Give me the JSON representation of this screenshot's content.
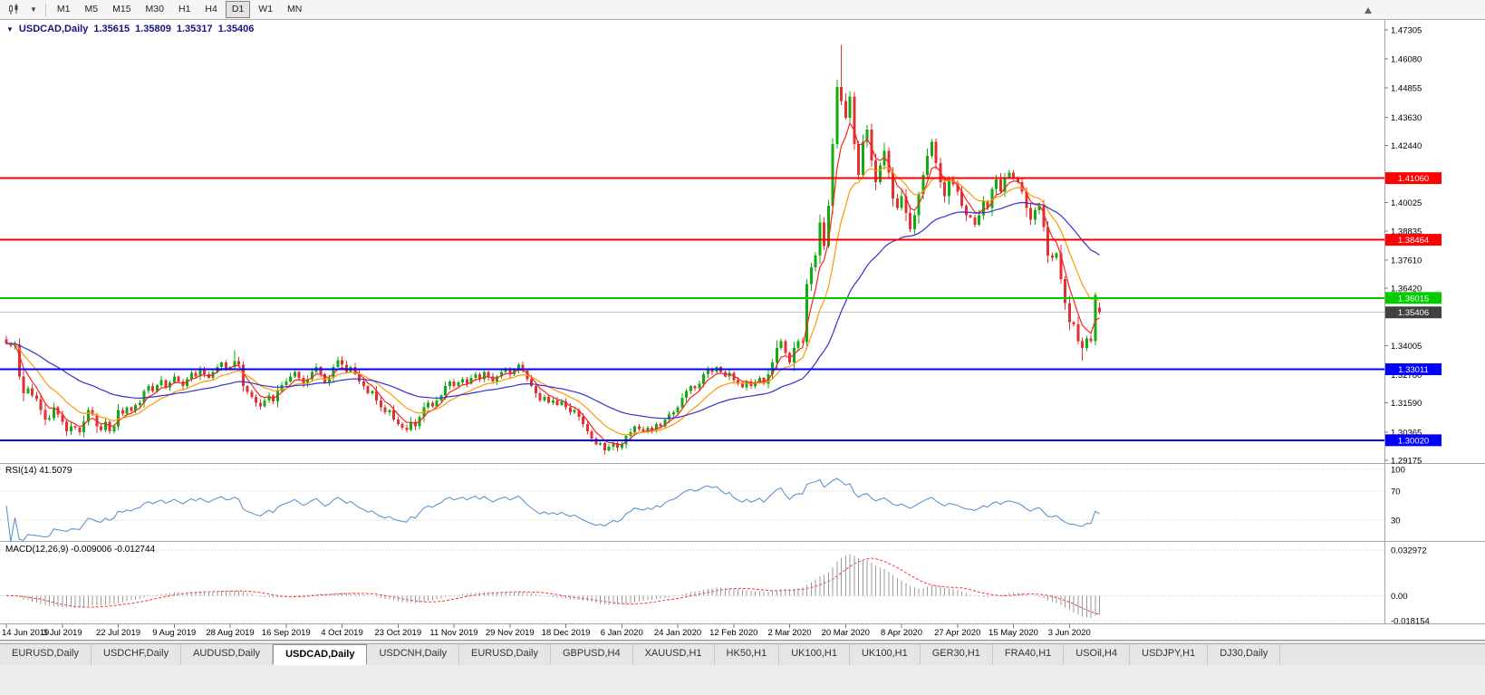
{
  "toolbar": {
    "timeframes": [
      "M1",
      "M5",
      "M15",
      "M30",
      "H1",
      "H4",
      "D1",
      "W1",
      "MN"
    ],
    "active_timeframe": "D1"
  },
  "chart_header": {
    "title": "USDCAD,Daily",
    "open": "1.35615",
    "high": "1.35809",
    "low": "1.35317",
    "close": "1.35406"
  },
  "indicators": {
    "rsi_label": "RSI(14) 41.5079",
    "rsi_axis": [
      "100",
      "70",
      "30"
    ],
    "macd_label": "MACD(12,26,9) -0.009006 -0.012744",
    "macd_axis": [
      "0.032972",
      "0.00",
      "-0.018154"
    ]
  },
  "price_axis": {
    "ticks": [
      1.47305,
      1.4608,
      1.44855,
      1.4363,
      1.4244,
      1.40025,
      1.38835,
      1.3761,
      1.3642,
      1.34005,
      1.3278,
      1.3159,
      1.30365,
      1.29175
    ],
    "current_price": 1.35406
  },
  "levels": [
    {
      "price": 1.4106,
      "label": "1.41060",
      "color": "#ff0000"
    },
    {
      "price": 1.38464,
      "label": "1.38464",
      "color": "#ff0000"
    },
    {
      "price": 1.36015,
      "label": "1.36015",
      "color": "#00cc00"
    },
    {
      "price": 1.33011,
      "label": "1.33011",
      "color": "#0000ff"
    },
    {
      "price": 1.3002,
      "label": "1.30020",
      "color": "#0000ff"
    }
  ],
  "tabs": {
    "items": [
      "EURUSD,Daily",
      "USDCHF,Daily",
      "AUDUSD,Daily",
      "USDCAD,Daily",
      "USDCNH,Daily",
      "EURUSD,Daily",
      "GBPUSD,H4",
      "XAUUSD,H1",
      "HK50,H1",
      "UK100,H1",
      "UK100,H1",
      "GER30,H1",
      "FRA40,H1",
      "USOil,H4",
      "USDJPY,H1",
      "DJ30,Daily"
    ],
    "active_index": 3
  },
  "colors": {
    "up_candle": "#12ab12",
    "down_candle": "#e03232",
    "ma_fast": "#ff2020",
    "ma_mid": "#ff9900",
    "ma_slow": "#3232d0",
    "rsi_line": "#4e8ccb",
    "macd_hist": "#9a9a9a",
    "macd_signal": "#ff3030",
    "current_tag_bg": "#404040"
  },
  "chart_data": {
    "type": "candlestick",
    "symbol": "USDCAD",
    "timeframe": "Daily",
    "x_labels": [
      "14 Jun 2019",
      "3 Jul 2019",
      "22 Jul 2019",
      "9 Aug 2019",
      "28 Aug 2019",
      "16 Sep 2019",
      "4 Oct 2019",
      "23 Oct 2019",
      "11 Nov 2019",
      "29 Nov 2019",
      "18 Dec 2019",
      "6 Jan 2020",
      "24 Jan 2020",
      "12 Feb 2020",
      "2 Mar 2020",
      "20 Mar 2020",
      "8 Apr 2020",
      "27 Apr 2020",
      "15 May 2020",
      "3 Jun 2020"
    ],
    "candles_per_label": 13,
    "y_range": [
      1.2895,
      1.4761
    ],
    "closes": [
      1.341,
      1.34,
      1.3405,
      1.327,
      1.32,
      1.322,
      1.319,
      1.3175,
      1.313,
      1.309,
      1.3095,
      1.314,
      1.311,
      1.308,
      1.304,
      1.306,
      1.3055,
      1.3035,
      1.308,
      1.313,
      1.311,
      1.306,
      1.3045,
      1.308,
      1.304,
      1.306,
      1.313,
      1.3115,
      1.314,
      1.3125,
      1.315,
      1.316,
      1.321,
      1.323,
      1.321,
      1.3235,
      1.3255,
      1.3225,
      1.3245,
      1.327,
      1.325,
      1.323,
      1.326,
      1.3285,
      1.327,
      1.33,
      1.328,
      1.3265,
      1.329,
      1.331,
      1.333,
      1.3305,
      1.331,
      1.3335,
      1.332,
      1.323,
      1.3205,
      1.3185,
      1.316,
      1.3145,
      1.317,
      1.319,
      1.3165,
      1.321,
      1.3235,
      1.325,
      1.327,
      1.329,
      1.3265,
      1.324,
      1.326,
      1.329,
      1.331,
      1.328,
      1.3245,
      1.3265,
      1.331,
      1.334,
      1.332,
      1.329,
      1.331,
      1.328,
      1.325,
      1.323,
      1.32,
      1.321,
      1.317,
      1.314,
      1.312,
      1.313,
      1.309,
      1.307,
      1.3055,
      1.3045,
      1.308,
      1.306,
      1.31,
      1.314,
      1.316,
      1.3145,
      1.317,
      1.319,
      1.323,
      1.325,
      1.323,
      1.3245,
      1.326,
      1.324,
      1.3265,
      1.328,
      1.326,
      1.329,
      1.327,
      1.325,
      1.327,
      1.329,
      1.33,
      1.328,
      1.33,
      1.332,
      1.3295,
      1.326,
      1.323,
      1.32,
      1.317,
      1.3185,
      1.316,
      1.317,
      1.315,
      1.3165,
      1.314,
      1.312,
      1.313,
      1.31,
      1.307,
      1.304,
      1.301,
      1.2985,
      1.299,
      1.296,
      1.2975,
      1.299,
      1.297,
      1.2985,
      1.302,
      1.3035,
      1.306,
      1.305,
      1.304,
      1.3055,
      1.3045,
      1.307,
      1.306,
      1.309,
      1.311,
      1.312,
      1.314,
      1.318,
      1.321,
      1.323,
      1.322,
      1.324,
      1.328,
      1.33,
      1.329,
      1.331,
      1.329,
      1.327,
      1.3285,
      1.3255,
      1.324,
      1.3225,
      1.325,
      1.323,
      1.3245,
      1.3265,
      1.324,
      1.328,
      1.333,
      1.339,
      1.342,
      1.337,
      1.333,
      1.339,
      1.342,
      1.3415,
      1.366,
      1.373,
      1.378,
      1.392,
      1.382,
      1.399,
      1.425,
      1.449,
      1.443,
      1.436,
      1.445,
      1.425,
      1.412,
      1.426,
      1.431,
      1.418,
      1.409,
      1.416,
      1.422,
      1.413,
      1.402,
      1.398,
      1.403,
      1.396,
      1.389,
      1.395,
      1.404,
      1.412,
      1.42,
      1.426,
      1.417,
      1.409,
      1.403,
      1.41,
      1.408,
      1.405,
      1.399,
      1.395,
      1.394,
      1.391,
      1.395,
      1.401,
      1.398,
      1.406,
      1.41,
      1.405,
      1.411,
      1.413,
      1.411,
      1.409,
      1.405,
      1.398,
      1.393,
      1.397,
      1.399,
      1.39,
      1.378,
      1.377,
      1.379,
      1.368,
      1.358,
      1.35,
      1.349,
      1.342,
      1.339,
      1.343,
      1.342,
      1.3615,
      1.35406
    ],
    "overrides": {
      "53": {
        "high": 1.3382
      },
      "139": {
        "low": 1.2943
      },
      "194": {
        "high": 1.4668
      },
      "250": {
        "low": 1.3338
      },
      "254": {
        "open": 1.35615,
        "high": 1.35809,
        "low": 1.35317,
        "close": 1.35406
      }
    },
    "moving_averages": [
      {
        "period": 5,
        "color_key": "ma_fast"
      },
      {
        "period": 13,
        "color_key": "ma_mid"
      },
      {
        "period": 40,
        "color_key": "ma_slow"
      }
    ],
    "rsi_period": 14,
    "macd_params": [
      12,
      26,
      9
    ],
    "current_ohlc": {
      "open": 1.35615,
      "high": 1.35809,
      "low": 1.35317,
      "close": 1.35406
    }
  }
}
